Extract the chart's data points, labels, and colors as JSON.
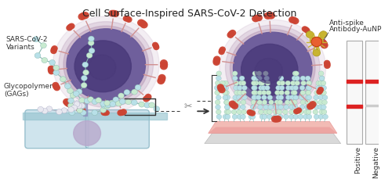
{
  "title": "Cell Surface-Inspired SARS-CoV-2 Detection",
  "title_fontsize": 9,
  "title_color": "#222222",
  "bg_color": "#ffffff",
  "label_sars": "SARS-CoV-2\nVariants",
  "label_glyco": "Glycopolymer\n(GAGs)",
  "label_antispike_1": "Anti-spike",
  "label_antispike_2": "Antibody-AuNP",
  "label_positive": "Positive",
  "label_negative": "Negative",
  "label_fontsize": 6.5,
  "label_color": "#333333",
  "virus_inner": "#4a3a7a",
  "virus_outer": "#6a5a9a",
  "virus_glow": "#b090b0",
  "spike_color": "#cc4433",
  "spike_stem": "#d09090",
  "glyco_bead1": "#b8e0e8",
  "glyco_bead2": "#c8ead0",
  "glyco_line": "#88b8b0",
  "cell_fill": "#c0dce8",
  "cell_edge": "#80b0c0",
  "cell_wall": "#90c0cc",
  "nucleus_fill": "#b8a8cc",
  "surface_fill": "#f0b0a8",
  "surface_fill2": "#e89090",
  "surface_gray": "#d8d8d8",
  "bracket_col": "#333333",
  "arrow_col": "#333333",
  "scissor_col": "#888888",
  "ab_col": "#c8b430",
  "ab_col2": "#a89420",
  "aunp_col": "#e86030",
  "strip_bg": "#f8f8f8",
  "strip_edge": "#aaaaaa",
  "strip_red": "#dd2222",
  "strip_gray": "#cccccc"
}
